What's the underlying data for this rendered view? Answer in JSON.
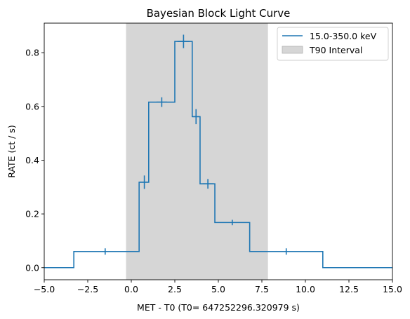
{
  "chart_data": {
    "type": "line",
    "title": "Bayesian Block Light Curve",
    "xlabel": "MET - T0 (T0= 647252296.320979 s)",
    "ylabel": "RATE (ct / s)",
    "xlim": [
      -5.0,
      15.0
    ],
    "ylim": [
      -0.045,
      0.91
    ],
    "x_ticks": [
      -5.0,
      -2.5,
      0.0,
      2.5,
      5.0,
      7.5,
      10.0,
      12.5,
      15.0
    ],
    "x_tick_labels": [
      "−5.0",
      "−2.5",
      "0.0",
      "2.5",
      "5.0",
      "7.5",
      "10.0",
      "12.5",
      "15.0"
    ],
    "y_ticks": [
      0.0,
      0.2,
      0.4,
      0.6,
      0.8
    ],
    "y_tick_labels": [
      "0.0",
      "0.2",
      "0.4",
      "0.6",
      "0.8"
    ],
    "grid": false,
    "legend_position": "top-right",
    "series": [
      {
        "name": "15.0-350.0 keV",
        "color": "#1f77b4",
        "style": "step",
        "edges": [
          -5.0,
          -3.3,
          0.45,
          1.0,
          2.5,
          3.5,
          3.95,
          4.8,
          6.8,
          11.0,
          15.0
        ],
        "values": [
          0.0,
          0.06,
          0.318,
          0.616,
          0.842,
          0.562,
          0.312,
          0.168,
          0.06,
          0.0
        ],
        "error_points": [
          {
            "x": -1.5,
            "y": 0.06,
            "yerr": 0.004,
            "xerr": 0
          },
          {
            "x": 0.75,
            "y": 0.318,
            "yerr": 0.025,
            "xerr": 0.28
          },
          {
            "x": 1.75,
            "y": 0.616,
            "yerr": 0.018,
            "xerr": 0.3
          },
          {
            "x": 3.0,
            "y": 0.842,
            "yerr": 0.025,
            "xerr": 0.35
          },
          {
            "x": 3.72,
            "y": 0.562,
            "yerr": 0.028,
            "xerr": 0.22
          },
          {
            "x": 4.4,
            "y": 0.312,
            "yerr": 0.018,
            "xerr": 0.3
          },
          {
            "x": 5.8,
            "y": 0.168,
            "yerr": 0.01,
            "xerr": 0
          },
          {
            "x": 8.9,
            "y": 0.06,
            "yerr": 0.004,
            "xerr": 0
          }
        ]
      }
    ],
    "shaded_regions": [
      {
        "name": "T90 Interval",
        "x_start": -0.3,
        "x_end": 7.85,
        "color": "#d6d6d6"
      }
    ]
  }
}
